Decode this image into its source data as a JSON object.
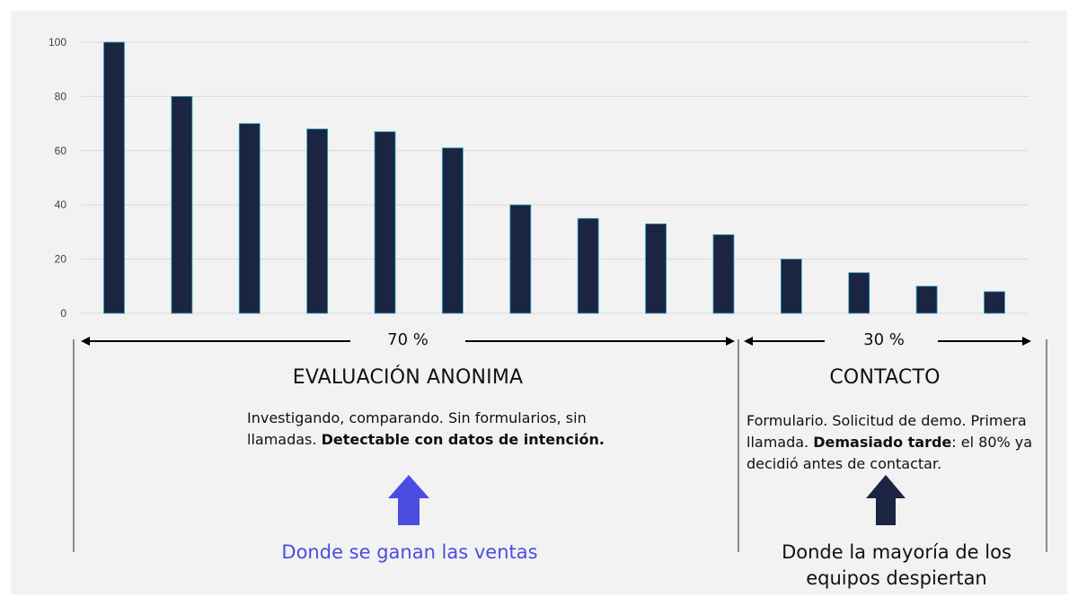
{
  "chart_data": {
    "type": "bar",
    "categories": [
      "",
      "",
      "",
      "",
      "",
      "",
      "",
      "",
      "",
      "",
      "",
      "",
      "",
      ""
    ],
    "values": [
      100,
      80,
      70,
      68,
      67,
      61,
      40,
      35,
      33,
      29,
      20,
      15,
      10,
      8
    ],
    "y_ticks": [
      0,
      20,
      40,
      60,
      80,
      100
    ],
    "ylim": [
      0,
      100
    ],
    "grid": true,
    "bar_color": "#1b2440",
    "title": "",
    "xlabel": "",
    "ylabel": ""
  },
  "left_section": {
    "percent": "70 %",
    "title": "EVALUACIÓN ANONIMA",
    "desc_part1": "Investigando, comparando. Sin formularios, sin llamadas. ",
    "desc_bold": "Detectable con datos de intención.",
    "arrow_color": "#4a4de0",
    "caption": "Donde se ganan las ventas",
    "caption_color": "#4a4de0"
  },
  "right_section": {
    "percent": "30 %",
    "title": "CONTACTO",
    "desc_part1": "Formulario. Solicitud de demo. Primera llamada. ",
    "desc_bold": "Demasiado tarde",
    "desc_part2": ": el 80% ya decidió antes de contactar.",
    "arrow_color": "#1b2440",
    "caption": "Donde la mayoría de los equipos despiertan",
    "caption_color": "#111111"
  }
}
